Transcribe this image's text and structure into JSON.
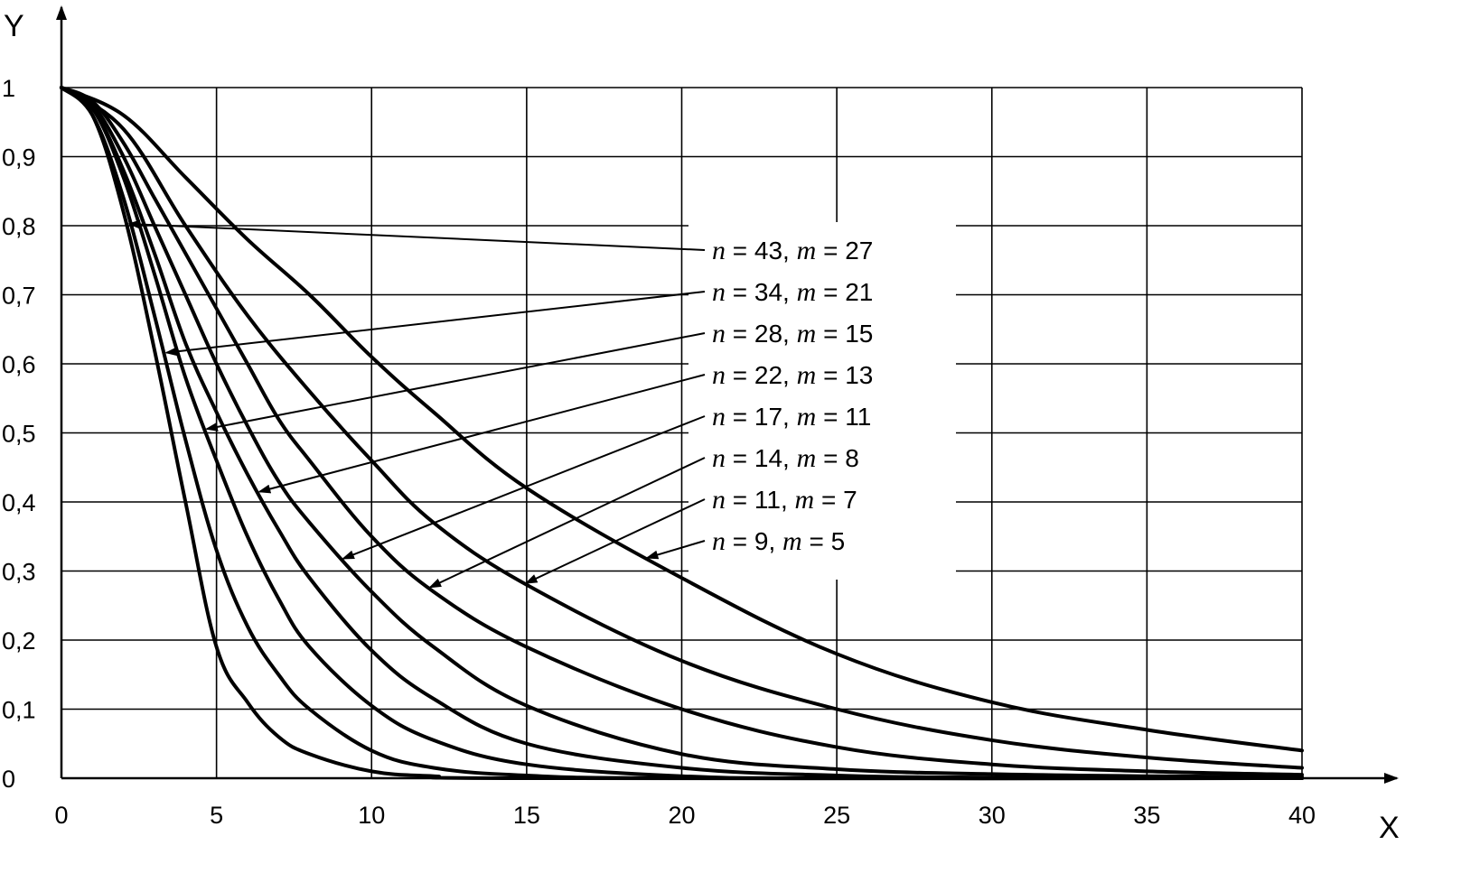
{
  "chart_data": {
    "type": "line",
    "xlabel": "X",
    "ylabel": "Y",
    "xlim": [
      0,
      40
    ],
    "ylim": [
      0,
      1
    ],
    "grid": true,
    "x_ticks": [
      "0",
      "5",
      "10",
      "15",
      "20",
      "25",
      "30",
      "35",
      "40"
    ],
    "y_ticks": [
      "0",
      "0,1",
      "0,2",
      "0,3",
      "0,4",
      "0,5",
      "0,6",
      "0,7",
      "0,8",
      "0,9",
      "1"
    ],
    "series": [
      {
        "name": "n = 43, m = 27",
        "n": "43",
        "m": "27",
        "points": [
          [
            0,
            1
          ],
          [
            1,
            0.96
          ],
          [
            2,
            0.82
          ],
          [
            3,
            0.62
          ],
          [
            4,
            0.4
          ],
          [
            5,
            0.19
          ],
          [
            6,
            0.11
          ],
          [
            7,
            0.06
          ],
          [
            8,
            0.035
          ],
          [
            10,
            0.01
          ],
          [
            12,
            0.003
          ],
          [
            15,
            0.0
          ],
          [
            40,
            0.0
          ]
        ]
      },
      {
        "name": "n = 34, m = 21",
        "n": "34",
        "m": "21",
        "points": [
          [
            0,
            1
          ],
          [
            1,
            0.96
          ],
          [
            2,
            0.84
          ],
          [
            3,
            0.67
          ],
          [
            4,
            0.49
          ],
          [
            5,
            0.33
          ],
          [
            6,
            0.22
          ],
          [
            7,
            0.15
          ],
          [
            8,
            0.1
          ],
          [
            10,
            0.04
          ],
          [
            12,
            0.015
          ],
          [
            15,
            0.004
          ],
          [
            20,
            0.0
          ],
          [
            40,
            0.0
          ]
        ]
      },
      {
        "name": "n = 28, m = 15",
        "n": "28",
        "m": "15",
        "points": [
          [
            0,
            1
          ],
          [
            1,
            0.97
          ],
          [
            2,
            0.87
          ],
          [
            3,
            0.73
          ],
          [
            4,
            0.58
          ],
          [
            5,
            0.46
          ],
          [
            6,
            0.35
          ],
          [
            7,
            0.26
          ],
          [
            8,
            0.19
          ],
          [
            10,
            0.105
          ],
          [
            12,
            0.055
          ],
          [
            15,
            0.02
          ],
          [
            20,
            0.003
          ],
          [
            25,
            0.0
          ],
          [
            40,
            0.0
          ]
        ]
      },
      {
        "name": "n = 22, m = 13",
        "n": "22",
        "m": "13",
        "points": [
          [
            0,
            1
          ],
          [
            1,
            0.97
          ],
          [
            2,
            0.88
          ],
          [
            3,
            0.76
          ],
          [
            4,
            0.63
          ],
          [
            5,
            0.53
          ],
          [
            6,
            0.44
          ],
          [
            7,
            0.36
          ],
          [
            8,
            0.29
          ],
          [
            10,
            0.185
          ],
          [
            12,
            0.115
          ],
          [
            15,
            0.05
          ],
          [
            20,
            0.015
          ],
          [
            25,
            0.004
          ],
          [
            30,
            0.001
          ],
          [
            40,
            0.0
          ]
        ]
      },
      {
        "name": "n = 17, m = 11",
        "n": "17",
        "m": "11",
        "points": [
          [
            0,
            1
          ],
          [
            1,
            0.975
          ],
          [
            2,
            0.9
          ],
          [
            3,
            0.8
          ],
          [
            4,
            0.7
          ],
          [
            5,
            0.6
          ],
          [
            6,
            0.51
          ],
          [
            7,
            0.43
          ],
          [
            8,
            0.37
          ],
          [
            10,
            0.27
          ],
          [
            12,
            0.19
          ],
          [
            15,
            0.105
          ],
          [
            20,
            0.035
          ],
          [
            25,
            0.013
          ],
          [
            30,
            0.006
          ],
          [
            35,
            0.003
          ],
          [
            40,
            0.002
          ]
        ]
      },
      {
        "name": "n = 14, m = 8",
        "n": "14",
        "m": "8",
        "points": [
          [
            0,
            1
          ],
          [
            1,
            0.98
          ],
          [
            2,
            0.92
          ],
          [
            3,
            0.84
          ],
          [
            4,
            0.76
          ],
          [
            5,
            0.68
          ],
          [
            6,
            0.6
          ],
          [
            7,
            0.52
          ],
          [
            8,
            0.46
          ],
          [
            10,
            0.35
          ],
          [
            12,
            0.27
          ],
          [
            15,
            0.19
          ],
          [
            20,
            0.1
          ],
          [
            25,
            0.045
          ],
          [
            30,
            0.02
          ],
          [
            35,
            0.01
          ],
          [
            40,
            0.005
          ]
        ]
      },
      {
        "name": "n = 11, m = 7",
        "n": "11",
        "m": "7",
        "points": [
          [
            0,
            1
          ],
          [
            2,
            0.94
          ],
          [
            4,
            0.8
          ],
          [
            6,
            0.67
          ],
          [
            8,
            0.56
          ],
          [
            10,
            0.46
          ],
          [
            12,
            0.37
          ],
          [
            15,
            0.28
          ],
          [
            20,
            0.17
          ],
          [
            25,
            0.1
          ],
          [
            30,
            0.055
          ],
          [
            35,
            0.03
          ],
          [
            40,
            0.015
          ]
        ]
      },
      {
        "name": "n = 9, m = 5",
        "n": "9",
        "m": "5",
        "points": [
          [
            0,
            1
          ],
          [
            2,
            0.96
          ],
          [
            4,
            0.87
          ],
          [
            6,
            0.78
          ],
          [
            8,
            0.7
          ],
          [
            10,
            0.61
          ],
          [
            12,
            0.53
          ],
          [
            15,
            0.42
          ],
          [
            20,
            0.29
          ],
          [
            25,
            0.18
          ],
          [
            30,
            0.11
          ],
          [
            35,
            0.07
          ],
          [
            40,
            0.04
          ]
        ]
      }
    ]
  }
}
